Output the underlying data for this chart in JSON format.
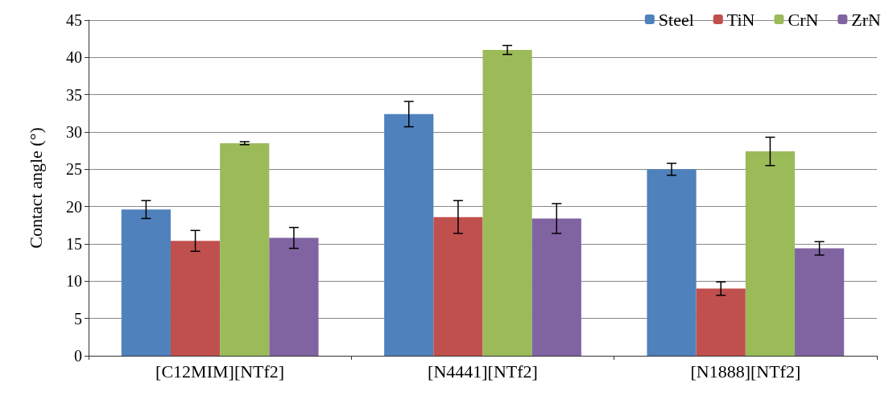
{
  "chart_data": {
    "type": "bar",
    "ylabel": "Contact angle (°)",
    "categories": [
      "[C12MIM][NTf2]",
      "[N4441][NTf2]",
      "[N1888][NTf2]"
    ],
    "series": [
      {
        "name": "Steel",
        "color": "#4f81bd",
        "values": [
          19.6,
          32.4,
          25.0
        ],
        "errors": [
          1.2,
          1.7,
          0.8
        ]
      },
      {
        "name": "TiN",
        "color": "#c0504d",
        "values": [
          15.4,
          18.6,
          9.0
        ],
        "errors": [
          1.4,
          2.2,
          0.9
        ]
      },
      {
        "name": "CrN",
        "color": "#9bbb59",
        "values": [
          28.5,
          41.0,
          27.4
        ],
        "errors": [
          0.2,
          0.6,
          1.9
        ]
      },
      {
        "name": "ZrN",
        "color": "#8064a2",
        "values": [
          15.8,
          18.4,
          14.4
        ],
        "errors": [
          1.4,
          2.0,
          0.9
        ]
      }
    ],
    "ylim": [
      0,
      45
    ],
    "yticks": [
      0,
      5,
      10,
      15,
      20,
      25,
      30,
      35,
      40,
      45
    ],
    "grid": "y",
    "legend": "top right"
  }
}
